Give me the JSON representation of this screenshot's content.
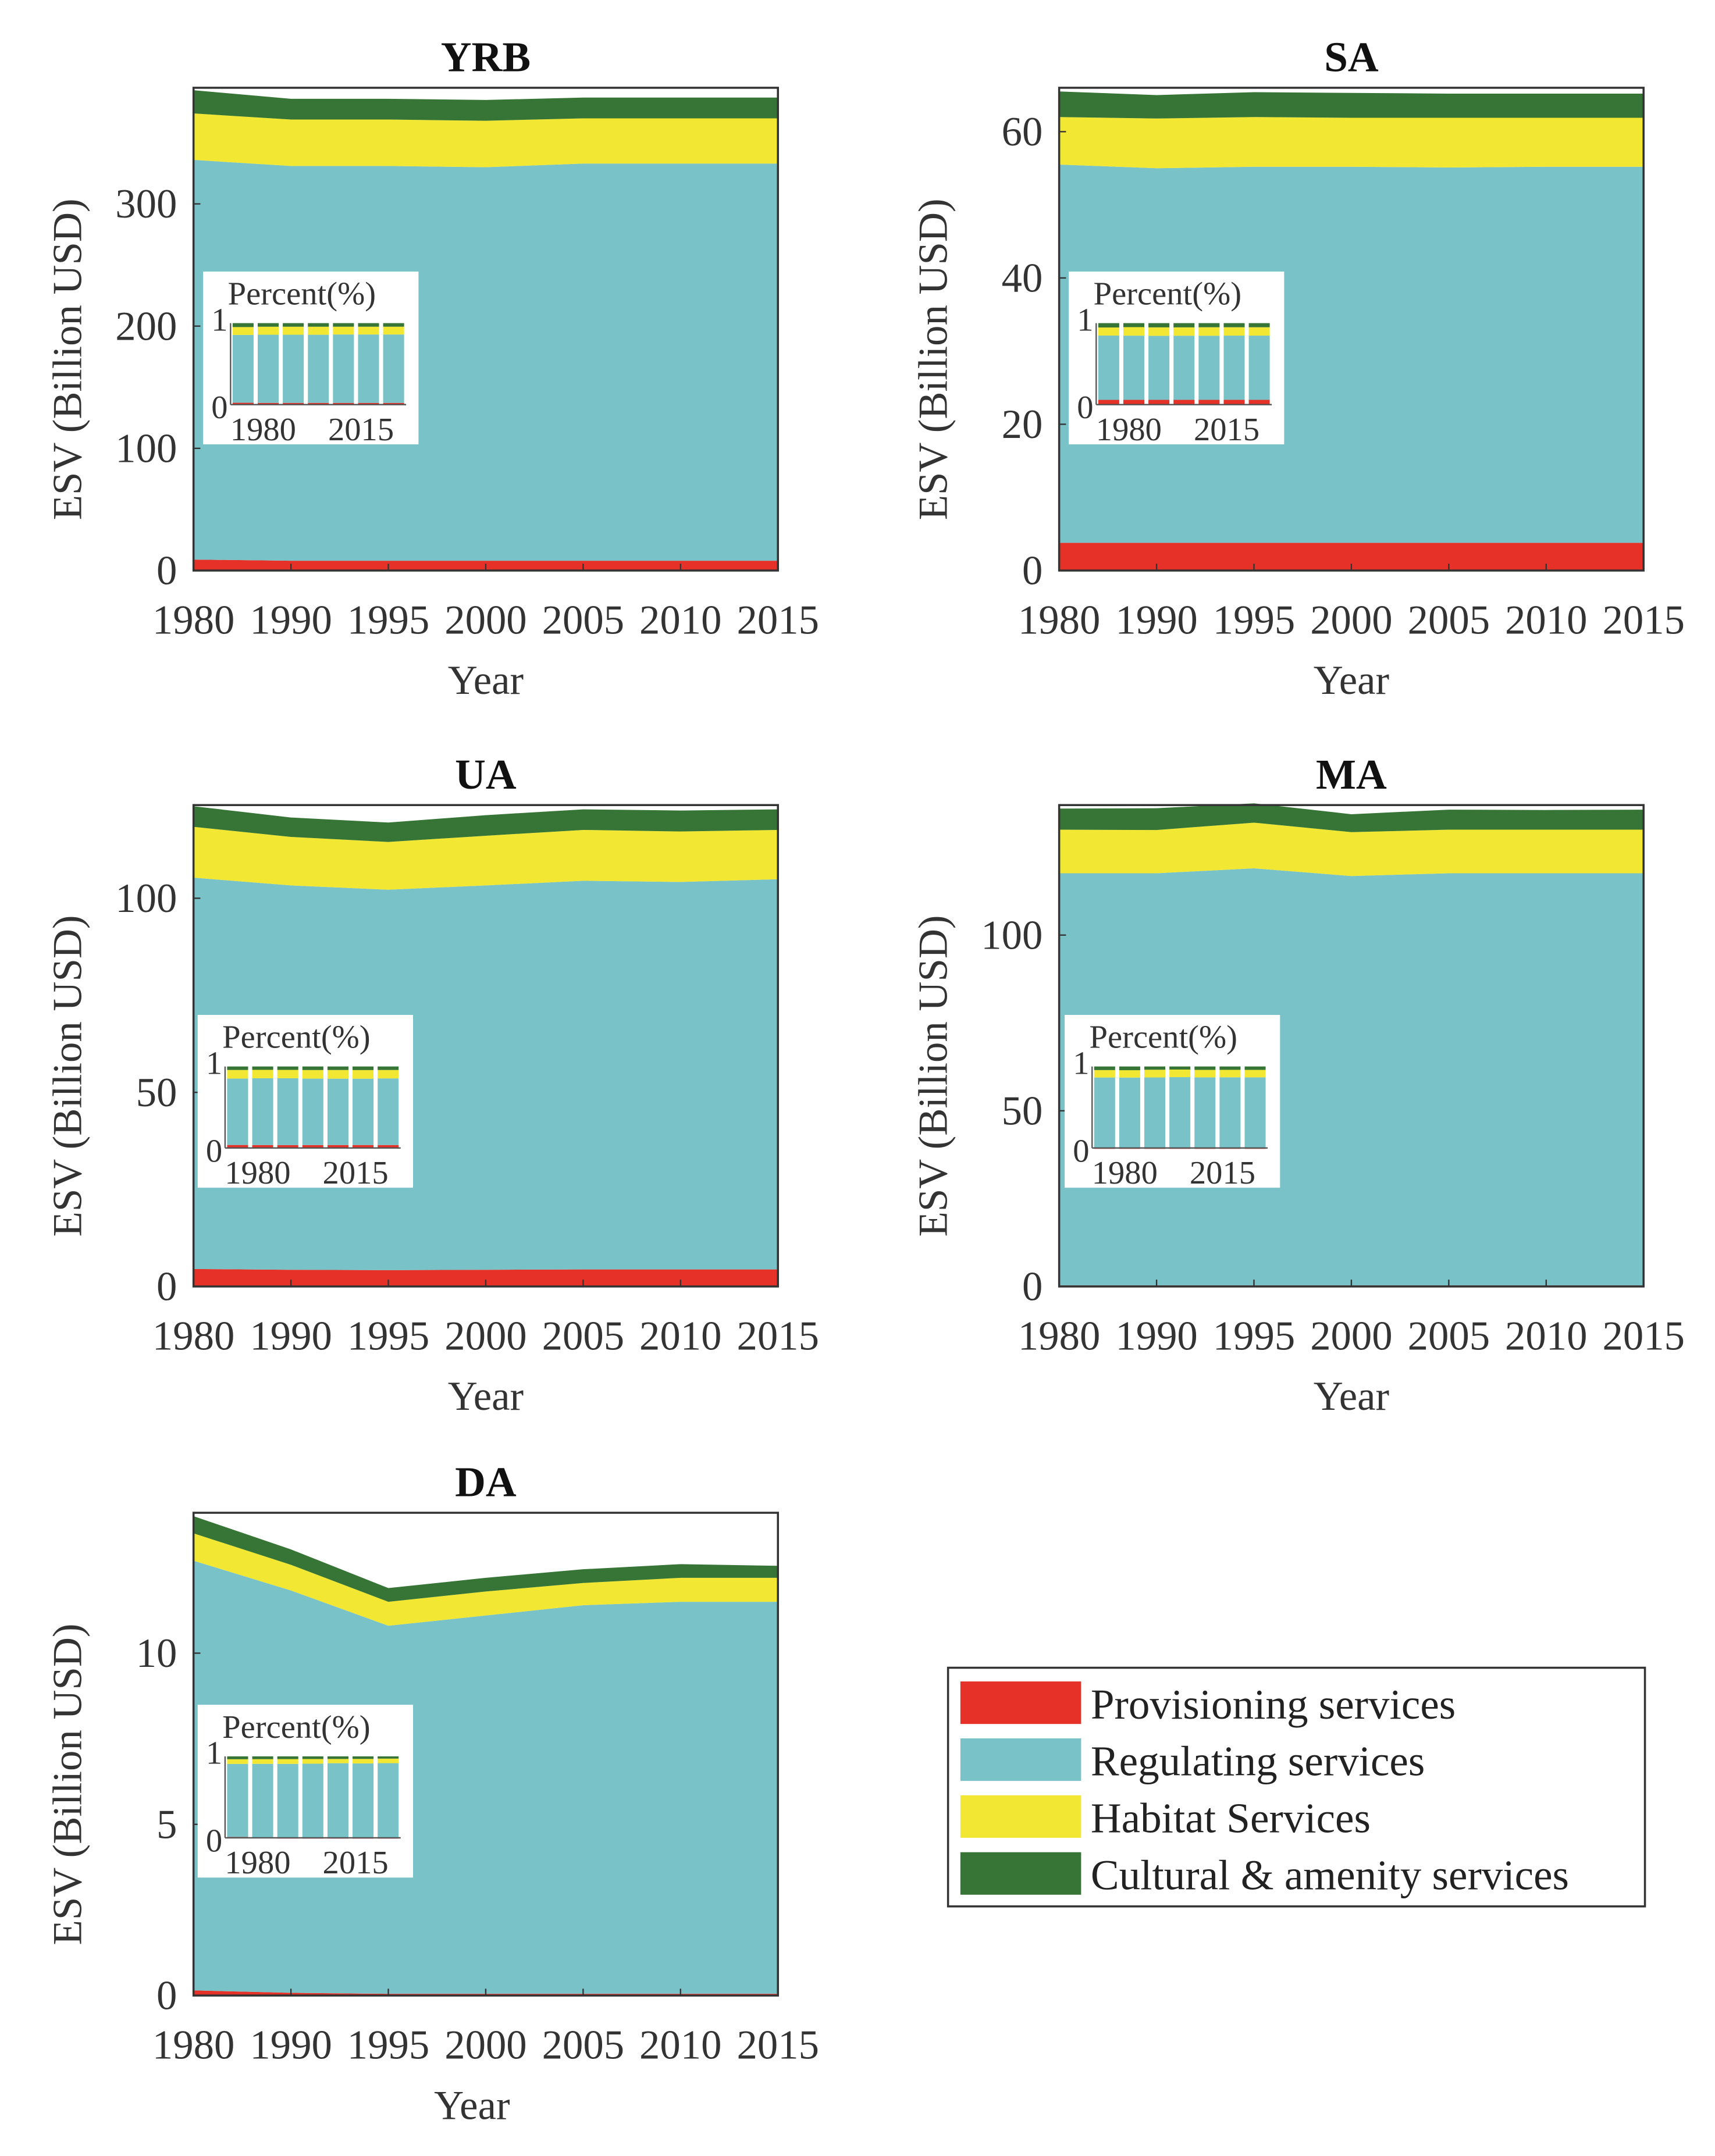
{
  "colors": {
    "provisioning": "#e53128",
    "regulating": "#79c2c8",
    "habitat": "#f2e833",
    "cultural": "#367535"
  },
  "legend": [
    "Provisioning services",
    "Regulating services",
    "Habitat Services",
    "Cultural & amenity services"
  ],
  "chart_data": [
    {
      "type": "area",
      "title": "YRB",
      "xlabel": "Year",
      "ylabel": "ESV (Billion USD)",
      "categories": [
        "1980",
        "1990",
        "1995",
        "2000",
        "2005",
        "2010",
        "2015"
      ],
      "ylim": [
        0,
        395
      ],
      "yticks": [
        0,
        100,
        200,
        300
      ],
      "series": [
        {
          "name": "Provisioning services",
          "values": [
            9,
            8,
            8,
            8,
            8,
            8,
            8
          ]
        },
        {
          "name": "Regulating services",
          "values": [
            327,
            323,
            323,
            322,
            325,
            325,
            325
          ]
        },
        {
          "name": "Habitat Services",
          "values": [
            38,
            38,
            38,
            38,
            37,
            37,
            37
          ]
        },
        {
          "name": "Cultural & amenity services",
          "values": [
            19,
            17,
            17,
            17,
            17,
            17,
            17
          ]
        }
      ],
      "inset": {
        "title": "Percent(%)",
        "yticks": [
          "0",
          "1"
        ],
        "xticks": [
          "1980",
          "2015"
        ]
      }
    },
    {
      "type": "area",
      "title": "SA",
      "xlabel": "Year",
      "ylabel": "ESV (Billion USD)",
      "categories": [
        "1980",
        "1990",
        "1995",
        "2000",
        "2005",
        "2010",
        "2015"
      ],
      "ylim": [
        0,
        66
      ],
      "yticks": [
        0,
        20,
        40,
        60
      ],
      "series": [
        {
          "name": "Provisioning services",
          "values": [
            3.8,
            3.8,
            3.8,
            3.8,
            3.8,
            3.8,
            3.8
          ]
        },
        {
          "name": "Regulating services",
          "values": [
            51.7,
            51.2,
            51.4,
            51.4,
            51.3,
            51.4,
            51.4
          ]
        },
        {
          "name": "Habitat Services",
          "values": [
            6.5,
            6.8,
            6.8,
            6.7,
            6.8,
            6.7,
            6.7
          ]
        },
        {
          "name": "Cultural & amenity services",
          "values": [
            3.5,
            3.2,
            3.4,
            3.4,
            3.3,
            3.3,
            3.3
          ]
        }
      ],
      "inset": {
        "title": "Percent(%)",
        "yticks": [
          "0",
          "1"
        ],
        "xticks": [
          "1980",
          "2015"
        ]
      }
    },
    {
      "type": "area",
      "title": "UA",
      "xlabel": "Year",
      "ylabel": "ESV (Billion USD)",
      "categories": [
        "1980",
        "1990",
        "1995",
        "2000",
        "2005",
        "2010",
        "2015"
      ],
      "ylim": [
        0,
        124
      ],
      "yticks": [
        0,
        50,
        100
      ],
      "series": [
        {
          "name": "Provisioning services",
          "values": [
            4.5,
            4.3,
            4.2,
            4.3,
            4.4,
            4.4,
            4.4
          ]
        },
        {
          "name": "Regulating services",
          "values": [
            100.8,
            99,
            98,
            99,
            100.1,
            99.8,
            100.5
          ]
        },
        {
          "name": "Habitat Services",
          "values": [
            13.1,
            12.5,
            12.3,
            12.8,
            13.1,
            13,
            12.7
          ]
        },
        {
          "name": "Cultural & amenity services",
          "values": [
            5.3,
            5,
            5,
            5.3,
            5.3,
            5.4,
            5.3
          ]
        }
      ],
      "inset": {
        "title": "Percent(%)",
        "yticks": [
          "0",
          "1"
        ],
        "xticks": [
          "1980",
          "2015"
        ]
      }
    },
    {
      "type": "area",
      "title": "MA",
      "xlabel": "Year",
      "ylabel": "ESV (Billion USD)",
      "categories": [
        "1980",
        "1990",
        "1995",
        "2000",
        "2005",
        "2010",
        "2015"
      ],
      "ylim": [
        0,
        137
      ],
      "yticks": [
        0,
        50,
        100
      ],
      "series": [
        {
          "name": "Provisioning services",
          "values": [
            0.3,
            0.3,
            0.3,
            0.3,
            0.3,
            0.3,
            0.3
          ]
        },
        {
          "name": "Regulating services",
          "values": [
            117.3,
            117.3,
            118.7,
            116.5,
            117.3,
            117.3,
            117.3
          ]
        },
        {
          "name": "Habitat Services",
          "values": [
            12.4,
            12.3,
            13,
            12.5,
            12.4,
            12.4,
            12.4
          ]
        },
        {
          "name": "Cultural & amenity services",
          "values": [
            6,
            6.2,
            5.5,
            5.1,
            5.7,
            5.6,
            5.7
          ]
        }
      ],
      "inset": {
        "title": "Percent(%)",
        "yticks": [
          "0",
          "1"
        ],
        "xticks": [
          "1980",
          "2015"
        ]
      }
    },
    {
      "type": "area",
      "title": "DA",
      "xlabel": "Year",
      "ylabel": "ESV (Billion USD)",
      "categories": [
        "1980",
        "1990",
        "1995",
        "2000",
        "2005",
        "2010",
        "2015"
      ],
      "ylim": [
        0,
        14.1
      ],
      "yticks": [
        0,
        5,
        10
      ],
      "series": [
        {
          "name": "Provisioning services",
          "values": [
            0.15,
            0.08,
            0.05,
            0.05,
            0.05,
            0.05,
            0.05
          ]
        },
        {
          "name": "Regulating services",
          "values": [
            12.55,
            11.75,
            10.75,
            11.05,
            11.35,
            11.45,
            11.45
          ]
        },
        {
          "name": "Habitat Services",
          "values": [
            0.8,
            0.75,
            0.7,
            0.7,
            0.65,
            0.7,
            0.7
          ]
        },
        {
          "name": "Cultural & amenity services",
          "values": [
            0.5,
            0.45,
            0.4,
            0.4,
            0.4,
            0.4,
            0.35
          ]
        }
      ],
      "inset": {
        "title": "Percent(%)",
        "yticks": [
          "0",
          "1"
        ],
        "xticks": [
          "1980",
          "2015"
        ]
      }
    }
  ]
}
